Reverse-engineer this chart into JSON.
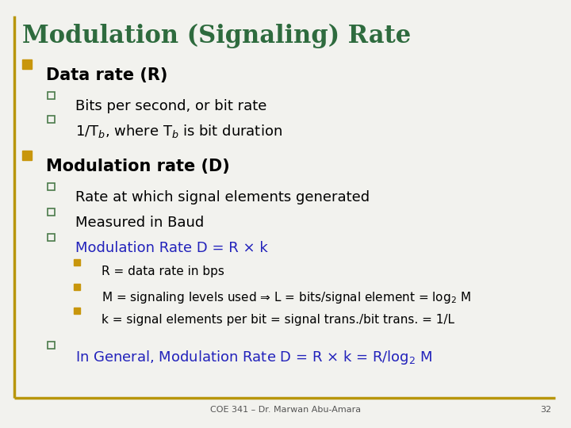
{
  "title": "Modulation (Signaling) Rate",
  "title_color": "#2E6B3E",
  "title_fontsize": 22,
  "background_color": "#F2F2EE",
  "border_color": "#B8960C",
  "bullet_l0_color": "#C8960C",
  "bullet_l1_color": "#4A7A4A",
  "bullet_l2_color": "#C8960C",
  "footer_text": "COE 341 – Dr. Marwan Abu-Amara",
  "page_number": "32",
  "items": [
    {
      "level": 0,
      "text": "Data rate (R)",
      "color": "#000000",
      "bold": true,
      "fontsize": 15
    },
    {
      "level": 1,
      "text": "Bits per second, or bit rate",
      "color": "#000000",
      "bold": false,
      "fontsize": 13
    },
    {
      "level": 1,
      "text": "1/T$_{b}$, where T$_{b}$ is bit duration",
      "color": "#000000",
      "bold": false,
      "fontsize": 13
    },
    {
      "level": 0,
      "text": "Modulation rate (D)",
      "color": "#000000",
      "bold": true,
      "fontsize": 15
    },
    {
      "level": 1,
      "text": "Rate at which signal elements generated",
      "color": "#000000",
      "bold": false,
      "fontsize": 13
    },
    {
      "level": 1,
      "text": "Measured in Baud",
      "color": "#000000",
      "bold": false,
      "fontsize": 13
    },
    {
      "level": 1,
      "text": "Modulation Rate D = R × k",
      "color": "#2222BB",
      "bold": false,
      "fontsize": 13
    },
    {
      "level": 2,
      "text": "R = data rate in bps",
      "color": "#000000",
      "bold": false,
      "fontsize": 11
    },
    {
      "level": 2,
      "text": "M = signaling levels used ⇒ L = bits/signal element = log$_{2}$ M",
      "color": "#000000",
      "bold": false,
      "fontsize": 11
    },
    {
      "level": 2,
      "text": "k = signal elements per bit = signal trans./bit trans. = 1/L",
      "color": "#000000",
      "bold": false,
      "fontsize": 11
    },
    {
      "level": 1,
      "text": "In General, Modulation Rate D = R × k = R/log$_{2}$ M",
      "color": "#2222BB",
      "bold": false,
      "fontsize": 13
    }
  ]
}
